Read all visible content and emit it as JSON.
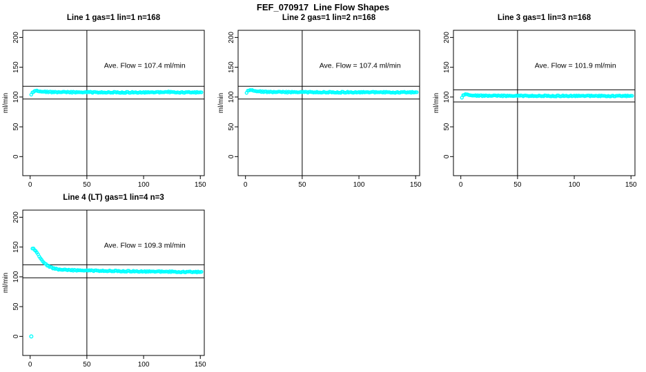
{
  "page": {
    "title": "FEF_070917  Line Flow Shapes"
  },
  "colors": {
    "background": "#ffffff",
    "points": "#00ffff",
    "axis": "#000000",
    "reference_lines": "#000000",
    "text": "#000000"
  },
  "chart_data": [
    {
      "type": "scatter",
      "title": "Line 1 gas=1 lin=1 n=168",
      "annotation": "Ave. Flow =  107.4  ml/min",
      "ave_flow_ml_min": 107.4,
      "n": 168,
      "xlabel": "",
      "ylabel": "ml/min",
      "x_ticks": [
        0,
        50,
        100,
        150
      ],
      "y_ticks": [
        0,
        50,
        100,
        150,
        200
      ],
      "xlim": [
        -6.5,
        153.5
      ],
      "ylim": [
        -32,
        212
      ],
      "grid": false,
      "vline_x": 50,
      "hline_upper": 118.1,
      "hline_lower": 96.7,
      "points": [
        [
          1,
          104.5
        ],
        [
          2,
          107
        ],
        [
          3,
          109
        ],
        [
          4,
          110.5
        ],
        [
          5,
          111
        ],
        [
          6,
          111
        ],
        [
          7,
          110.5
        ],
        [
          8,
          110.2
        ],
        [
          9,
          110
        ],
        [
          10,
          109.7
        ],
        [
          11,
          109.4
        ],
        [
          12,
          109.2
        ],
        [
          13,
          109
        ],
        [
          14,
          108.8
        ],
        [
          15,
          108.6
        ],
        [
          16,
          108.5
        ],
        [
          18,
          108.4
        ],
        [
          20,
          108.3
        ],
        [
          25,
          108.2
        ],
        [
          30,
          108.1
        ],
        [
          40,
          108
        ],
        [
          50,
          108
        ],
        [
          60,
          107.9
        ],
        [
          70,
          107.9
        ],
        [
          80,
          107.8
        ],
        [
          90,
          107.8
        ],
        [
          100,
          107.8
        ],
        [
          110,
          107.9
        ],
        [
          118,
          108
        ],
        [
          121,
          108.6
        ],
        [
          124,
          108.2
        ],
        [
          130,
          108
        ],
        [
          140,
          107.8
        ],
        [
          151,
          107.7
        ]
      ],
      "extra_points": []
    },
    {
      "type": "scatter",
      "title": "Line 2 gas=1 lin=2 n=168",
      "annotation": "Ave. Flow =  107.4  ml/min",
      "ave_flow_ml_min": 107.4,
      "n": 168,
      "xlabel": "",
      "ylabel": "ml/min",
      "x_ticks": [
        0,
        50,
        100,
        150
      ],
      "y_ticks": [
        0,
        50,
        100,
        150,
        200
      ],
      "xlim": [
        -6.5,
        153.5
      ],
      "ylim": [
        -32,
        212
      ],
      "grid": false,
      "vline_x": 50,
      "hline_upper": 118.1,
      "hline_lower": 96.7,
      "points": [
        [
          1,
          107.5
        ],
        [
          2,
          110
        ],
        [
          3,
          111.5
        ],
        [
          4,
          112
        ],
        [
          5,
          112
        ],
        [
          6,
          111.8
        ],
        [
          7,
          111.4
        ],
        [
          8,
          111
        ],
        [
          9,
          110.6
        ],
        [
          10,
          110.2
        ],
        [
          11,
          110
        ],
        [
          12,
          109.7
        ],
        [
          13,
          109.5
        ],
        [
          14,
          109.2
        ],
        [
          15,
          109
        ],
        [
          16,
          108.9
        ],
        [
          18,
          108.7
        ],
        [
          20,
          108.6
        ],
        [
          25,
          108.4
        ],
        [
          30,
          108.3
        ],
        [
          40,
          108.2
        ],
        [
          50,
          108.2
        ],
        [
          60,
          108.1
        ],
        [
          70,
          108.1
        ],
        [
          80,
          108
        ],
        [
          90,
          108
        ],
        [
          100,
          108
        ],
        [
          110,
          108
        ],
        [
          120,
          108
        ],
        [
          130,
          107.9
        ],
        [
          140,
          107.9
        ],
        [
          151,
          107.8
        ]
      ],
      "extra_points": []
    },
    {
      "type": "scatter",
      "title": "Line 3 gas=1 lin=3 n=168",
      "annotation": "Ave. Flow =  101.9  ml/min",
      "ave_flow_ml_min": 101.9,
      "n": 168,
      "xlabel": "",
      "ylabel": "ml/min",
      "x_ticks": [
        0,
        50,
        100,
        150
      ],
      "y_ticks": [
        0,
        50,
        100,
        150,
        200
      ],
      "xlim": [
        -6.5,
        153.5
      ],
      "ylim": [
        -32,
        212
      ],
      "grid": false,
      "vline_x": 50,
      "hline_upper": 112.1,
      "hline_lower": 91.7,
      "points": [
        [
          1,
          99.5
        ],
        [
          2,
          102.5
        ],
        [
          3,
          104
        ],
        [
          4,
          105
        ],
        [
          5,
          105
        ],
        [
          6,
          104.6
        ],
        [
          7,
          104.2
        ],
        [
          8,
          103.8
        ],
        [
          9,
          103.4
        ],
        [
          10,
          103.1
        ],
        [
          11,
          102.9
        ],
        [
          12,
          102.7
        ],
        [
          13,
          102.5
        ],
        [
          14,
          102.4
        ],
        [
          15,
          102.3
        ],
        [
          16,
          102.3
        ],
        [
          18,
          102.2
        ],
        [
          20,
          102.2
        ],
        [
          25,
          102.1
        ],
        [
          30,
          102.1
        ],
        [
          40,
          102
        ],
        [
          50,
          102
        ],
        [
          60,
          102
        ],
        [
          70,
          102
        ],
        [
          80,
          101.9
        ],
        [
          90,
          101.9
        ],
        [
          100,
          101.9
        ],
        [
          110,
          101.9
        ],
        [
          120,
          101.8
        ],
        [
          130,
          101.8
        ],
        [
          140,
          101.8
        ],
        [
          151,
          101.8
        ]
      ],
      "extra_points": []
    },
    {
      "type": "scatter",
      "title": "Line 4 (LT) gas=1 lin=4 n=3",
      "annotation": "Ave. Flow =  109.3  ml/min",
      "ave_flow_ml_min": 109.3,
      "n": 3,
      "xlabel": "",
      "ylabel": "ml/min",
      "x_ticks": [
        0,
        50,
        100,
        150
      ],
      "y_ticks": [
        0,
        50,
        100,
        150,
        200
      ],
      "xlim": [
        -6.5,
        153.5
      ],
      "ylim": [
        -32,
        212
      ],
      "grid": false,
      "vline_x": 50,
      "hline_upper": 120.2,
      "hline_lower": 98.4,
      "points": [
        [
          2,
          148
        ],
        [
          3,
          147
        ],
        [
          4,
          145.5
        ],
        [
          5,
          143.5
        ],
        [
          6,
          141
        ],
        [
          7,
          138
        ],
        [
          8,
          135
        ],
        [
          9,
          132
        ],
        [
          10,
          129.5
        ],
        [
          11,
          127
        ],
        [
          12,
          124.5
        ],
        [
          13,
          122.5
        ],
        [
          14,
          121
        ],
        [
          15,
          119.5
        ],
        [
          16,
          118.3
        ],
        [
          17,
          117.2
        ],
        [
          18,
          116.2
        ],
        [
          19,
          115.4
        ],
        [
          20,
          114.7
        ],
        [
          21,
          114.1
        ],
        [
          22,
          113.6
        ],
        [
          23,
          113.2
        ],
        [
          24,
          112.8
        ],
        [
          25,
          112.5
        ],
        [
          26,
          112.2
        ],
        [
          28,
          111.9
        ],
        [
          30,
          111.6
        ],
        [
          32,
          111.4
        ],
        [
          34,
          111.3
        ],
        [
          36,
          111.2
        ],
        [
          38,
          111.1
        ],
        [
          40,
          111
        ],
        [
          45,
          110.8
        ],
        [
          50,
          110.6
        ],
        [
          55,
          110.4
        ],
        [
          60,
          110.2
        ],
        [
          65,
          110.1
        ],
        [
          70,
          109.9
        ],
        [
          75,
          109.8
        ],
        [
          80,
          109.6
        ],
        [
          85,
          109.5
        ],
        [
          90,
          109.3
        ],
        [
          95,
          109.2
        ],
        [
          100,
          109
        ],
        [
          105,
          108.9
        ],
        [
          110,
          108.8
        ],
        [
          115,
          108.7
        ],
        [
          120,
          108.6
        ],
        [
          125,
          108.5
        ],
        [
          130,
          108.4
        ],
        [
          135,
          108.3
        ],
        [
          140,
          108.2
        ],
        [
          145,
          108.1
        ],
        [
          151,
          108
        ]
      ],
      "extra_points": [
        [
          1,
          0
        ]
      ]
    }
  ]
}
